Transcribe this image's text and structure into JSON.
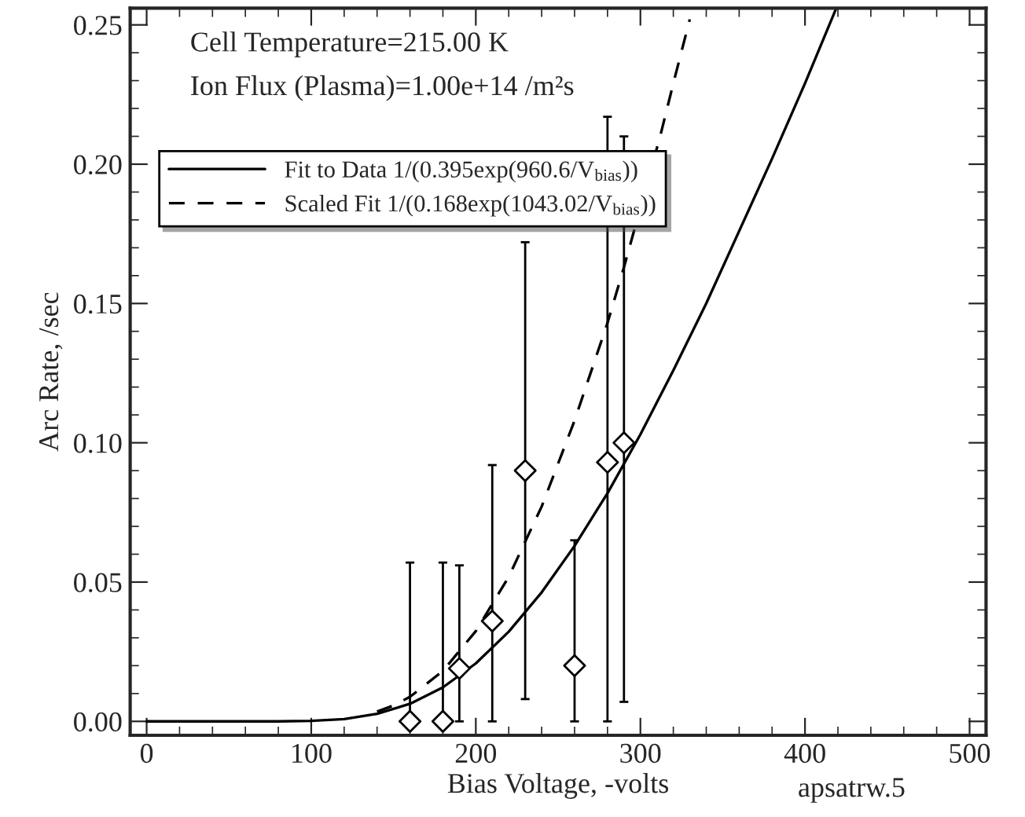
{
  "chart_data": {
    "type": "scatter",
    "xlabel": "Bias Voltage, -volts",
    "ylabel": "Arc Rate, /sec",
    "xlim": [
      -10,
      510
    ],
    "ylim": [
      -0.005,
      0.256
    ],
    "xticks": [
      0,
      100,
      200,
      300,
      400,
      500
    ],
    "yticks": [
      {
        "value": 0,
        "label": "0.00"
      },
      {
        "value": 0.05,
        "label": "0.05"
      },
      {
        "value": 0.1,
        "label": "0.10"
      },
      {
        "value": 0.15,
        "label": "0.15"
      },
      {
        "value": 0.2,
        "label": "0.20"
      },
      {
        "value": 0.25,
        "label": "0.25"
      }
    ],
    "annotations": [
      "Cell Temperature=215.00 K",
      "Ion Flux (Plasma)=1.00e+14 /m²s",
      "apsatrw.5"
    ],
    "legend": "top left",
    "grid": false,
    "series": [
      {
        "type": "line",
        "name": "Fit to Data 1/(0.395exp(960.6/V$_{bias}$))",
        "color": "#000000",
        "line_style": "solid",
        "marker": "none",
        "x": [
          0,
          80,
          100,
          120,
          140,
          160,
          180,
          200,
          220,
          240,
          260,
          280,
          300,
          320,
          340,
          360,
          380,
          400,
          419
        ],
        "values": [
          0,
          0,
          0.0002,
          0.0008,
          0.0027,
          0.0063,
          0.0122,
          0.0208,
          0.0322,
          0.0463,
          0.063,
          0.0819,
          0.103,
          0.126,
          0.15,
          0.176,
          0.202,
          0.229,
          0.256
        ]
      },
      {
        "type": "line",
        "name": "Scaled Fit 1/(0.168exp(1043.02/V$_{bias}$))",
        "color": "#000000",
        "line_style": "dashed",
        "marker": "none",
        "x": [
          140,
          150,
          160,
          180,
          200,
          220,
          240,
          260,
          280,
          290,
          312,
          320,
          330
        ],
        "values": [
          0.0035,
          0.0057,
          0.0088,
          0.0181,
          0.0324,
          0.0519,
          0.0771,
          0.108,
          0.143,
          0.163,
          0.21,
          0.229,
          0.252
        ]
      },
      {
        "color": "#000000",
        "marker": "diamond",
        "x": [
          160,
          180,
          190,
          210,
          230,
          260,
          280,
          290
        ],
        "values": [
          0.0,
          0.0,
          0.019,
          0.036,
          0.09,
          0.02,
          0.093,
          0.1
        ],
        "errors": [
          [
            0,
            0.057
          ],
          [
            0,
            0.057
          ],
          [
            0,
            0.056
          ],
          [
            0,
            0.092
          ],
          [
            0.008,
            0.172
          ],
          [
            0,
            0.065
          ],
          [
            0,
            0.217
          ],
          [
            0.007,
            0.21
          ]
        ]
      }
    ]
  }
}
